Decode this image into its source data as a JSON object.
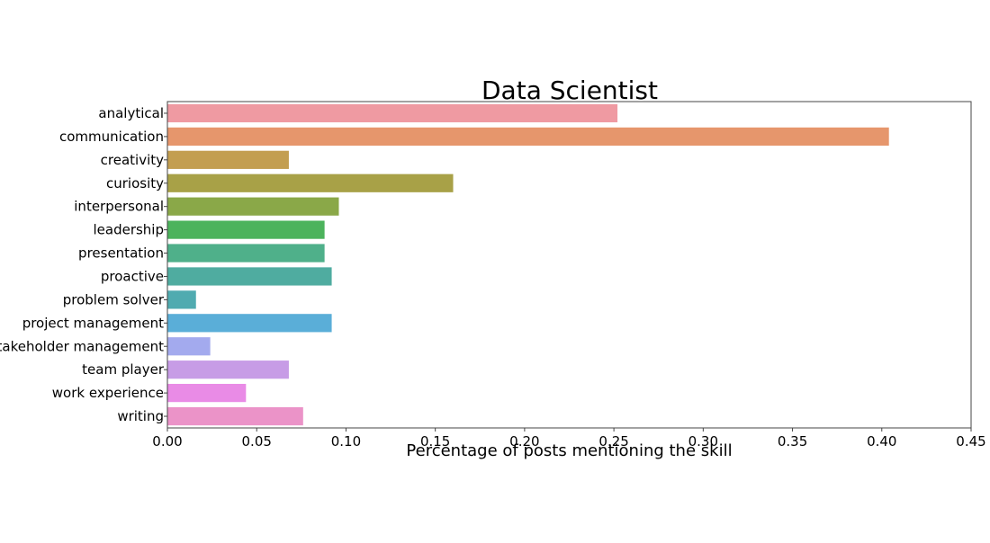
{
  "chart_data": {
    "type": "bar",
    "orientation": "horizontal",
    "title": "Data Scientist",
    "xlabel": "Percentage of posts mentioning the skill",
    "ylabel": "",
    "xlim": [
      0,
      0.45
    ],
    "xticks": [
      "0.00",
      "0.05",
      "0.10",
      "0.15",
      "0.20",
      "0.25",
      "0.30",
      "0.35",
      "0.40",
      "0.45"
    ],
    "grid": false,
    "categories": [
      "analytical",
      "communication",
      "creativity",
      "curiosity",
      "interpersonal",
      "leadership",
      "presentation",
      "proactive",
      "problem solver",
      "project management",
      "stakeholder management",
      "team player",
      "work experience",
      "writing"
    ],
    "values": [
      0.252,
      0.404,
      0.068,
      0.16,
      0.096,
      0.088,
      0.088,
      0.092,
      0.016,
      0.092,
      0.024,
      0.068,
      0.044,
      0.076
    ],
    "colors": [
      "#ef9aa2",
      "#e6966c",
      "#c39e50",
      "#a8a147",
      "#8aa848",
      "#4cb35c",
      "#4fb08a",
      "#4faca0",
      "#50abb0",
      "#5aaed8",
      "#a3aaee",
      "#c79ce6",
      "#e98be6",
      "#eb93c8"
    ]
  }
}
